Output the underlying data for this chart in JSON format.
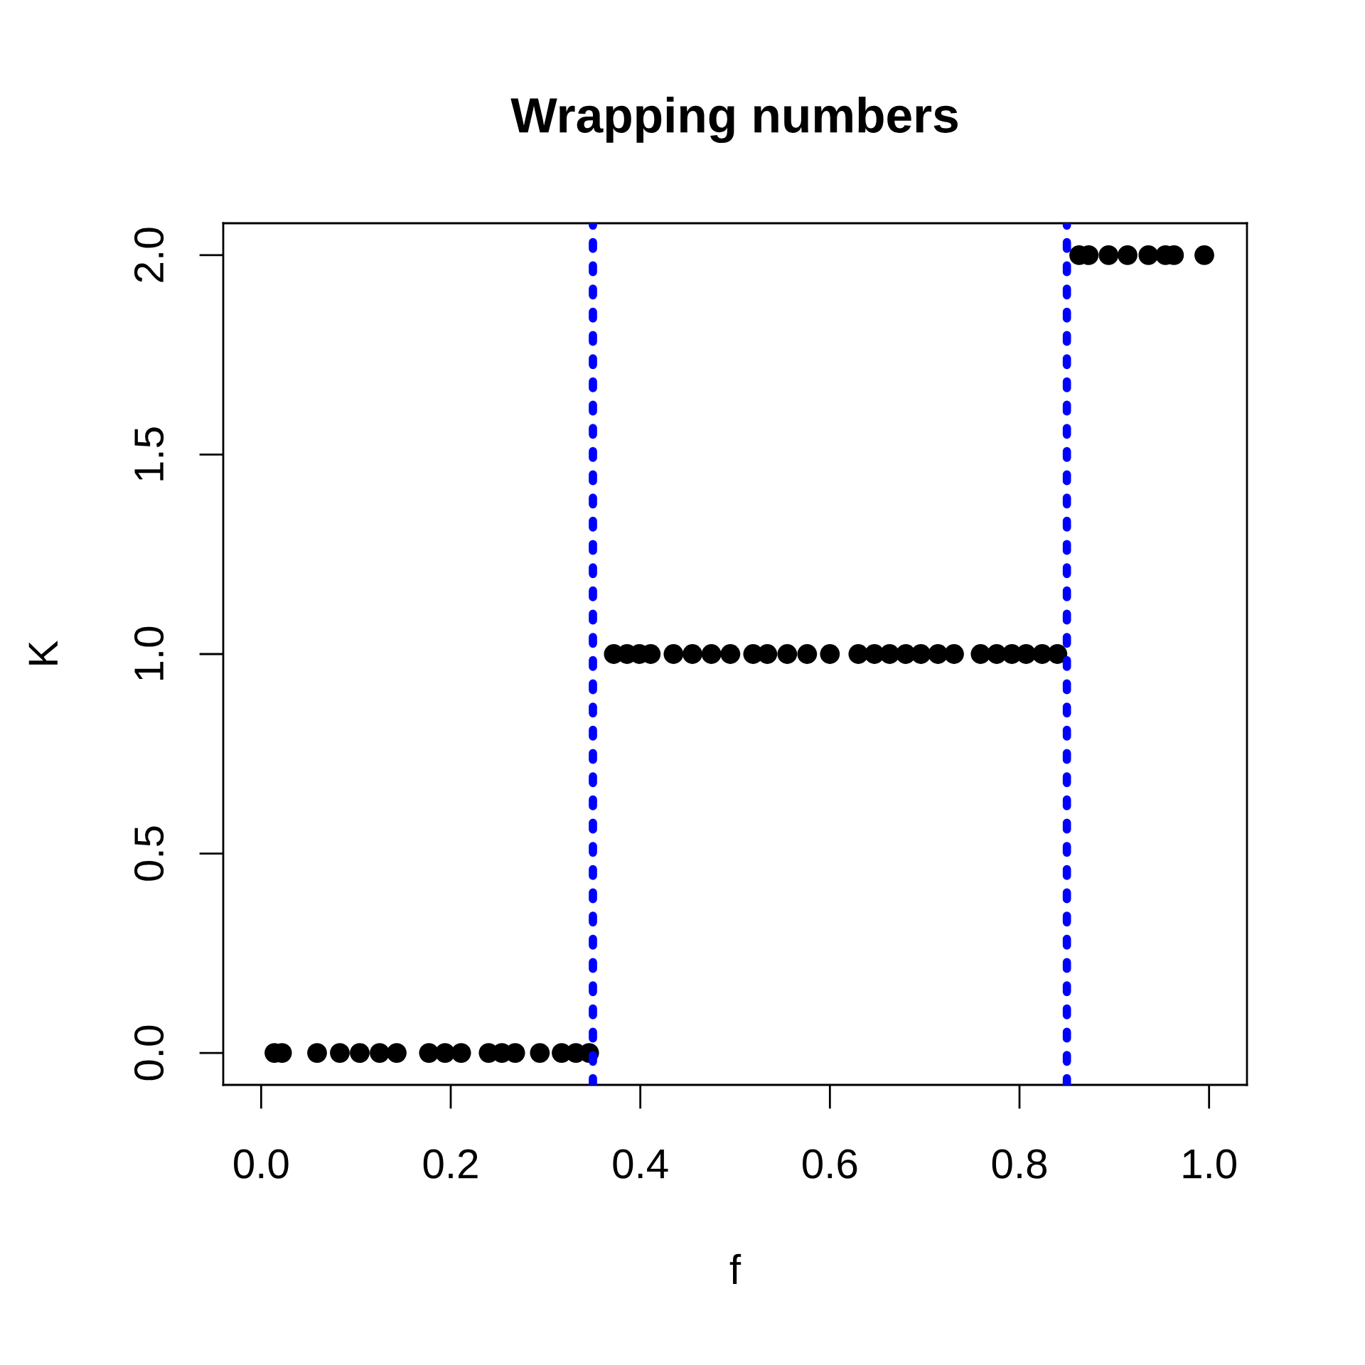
{
  "chart_data": {
    "type": "scatter",
    "title": "Wrapping numbers",
    "xlabel": "f",
    "ylabel": "K",
    "xlim": [
      -0.04,
      1.04
    ],
    "ylim": [
      -0.08,
      2.08
    ],
    "xticks": [
      {
        "value": 0,
        "label": "0.0"
      },
      0.2,
      0.4,
      0.6,
      0.8,
      {
        "value": 1,
        "label": "1.0"
      }
    ],
    "yticks": [
      {
        "value": 0,
        "label": "0.0"
      },
      0.5,
      {
        "value": 1,
        "label": "1.0"
      },
      1.5,
      {
        "value": 2,
        "label": "2.0"
      }
    ],
    "marker": "circle",
    "series": [
      {
        "color": "#000000",
        "x": [
          0.014,
          0.022,
          0.059,
          0.083,
          0.104,
          0.125,
          0.143,
          0.177,
          0.194,
          0.211,
          0.24,
          0.254,
          0.268,
          0.294,
          0.317,
          0.332,
          0.346,
          0.372,
          0.386,
          0.399,
          0.411,
          0.435,
          0.455,
          0.475,
          0.495,
          0.519,
          0.534,
          0.555,
          0.576,
          0.6,
          0.63,
          0.647,
          0.663,
          0.68,
          0.696,
          0.714,
          0.731,
          0.759,
          0.776,
          0.792,
          0.807,
          0.824,
          0.84,
          0.863,
          0.873,
          0.894,
          0.914,
          0.936,
          0.954,
          0.963,
          0.995
        ],
        "values": [
          0,
          0,
          0,
          0,
          0,
          0,
          0,
          0,
          0,
          0,
          0,
          0,
          0,
          0,
          0,
          0,
          0,
          1,
          1,
          1,
          1,
          1,
          1,
          1,
          1,
          1,
          1,
          1,
          1,
          1,
          1,
          1,
          1,
          1,
          1,
          1,
          1,
          1,
          1,
          1,
          1,
          1,
          1,
          2,
          2,
          2,
          2,
          2,
          2,
          2,
          2
        ]
      }
    ],
    "ref_lines": [
      {
        "axis": "x",
        "value": 0.35,
        "color": "#0000ff",
        "line_style": "dotted"
      },
      {
        "axis": "x",
        "value": 0.85,
        "color": "#0000ff",
        "line_style": "dotted"
      }
    ]
  }
}
